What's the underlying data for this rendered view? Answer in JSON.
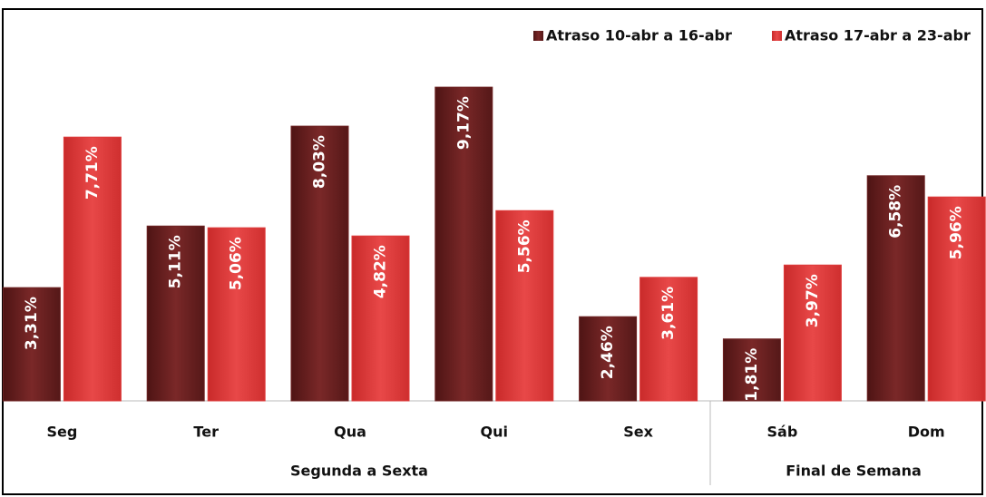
{
  "chart_data": {
    "type": "bar",
    "categories": [
      "Seg",
      "Ter",
      "Qua",
      "Qui",
      "Sex",
      "Sáb",
      "Dom"
    ],
    "groups": [
      "Segunda a Sexta",
      "Final de Semana"
    ],
    "series": [
      {
        "name": "Atraso 10-abr a 16-abr",
        "color": "#6e2222",
        "values": [
          3.31,
          5.11,
          8.03,
          9.17,
          2.46,
          1.81,
          6.58
        ],
        "value_labels": [
          "3,31%",
          "5,11%",
          "8,03%",
          "9,17%",
          "2,46%",
          "1,81%",
          "6,58%"
        ]
      },
      {
        "name": "Atraso 17-abr a 23-abr",
        "color": "#de3a3a",
        "values": [
          7.71,
          5.06,
          4.82,
          5.56,
          3.61,
          3.97,
          5.96
        ],
        "value_labels": [
          "7,71%",
          "5,06%",
          "4,82%",
          "5,56%",
          "3,61%",
          "3,97%",
          "5,96%"
        ]
      }
    ],
    "ylim": [
      0,
      11.4
    ],
    "legend": "top-right"
  }
}
